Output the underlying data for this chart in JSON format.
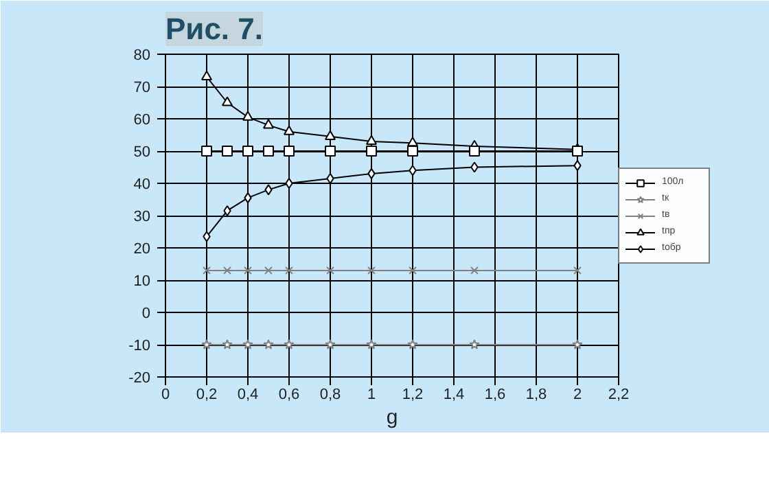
{
  "chart_data": {
    "type": "line",
    "title": "Рис. 7.",
    "xlabel": "g",
    "x": [
      0.2,
      0.3,
      0.4,
      0.5,
      0.6,
      0.8,
      1,
      1.2,
      1.5,
      2
    ],
    "series": [
      {
        "name": "100л",
        "color": "#000000",
        "marker": "square",
        "values": [
          50,
          50,
          50,
          50,
          50,
          50,
          50,
          50,
          50,
          50
        ]
      },
      {
        "name": "tк",
        "color": "#808080",
        "marker": "star",
        "values": [
          -10,
          -10,
          -10,
          -10,
          -10,
          -10,
          -10,
          -10,
          -10,
          -10
        ]
      },
      {
        "name": "tв",
        "color": "#808080",
        "marker": "cross",
        "values": [
          13,
          13,
          13,
          13,
          13,
          13,
          13,
          13,
          13,
          13
        ]
      },
      {
        "name": "tпр",
        "color": "#000000",
        "marker": "triangle",
        "values": [
          73,
          65,
          60.5,
          58,
          56,
          54.5,
          53,
          52.5,
          51.5,
          50.5
        ]
      },
      {
        "name": "tобр",
        "color": "#000000",
        "marker": "diamond",
        "values": [
          23.5,
          31.5,
          35.5,
          38,
          40,
          41.5,
          43,
          44,
          45,
          45.5
        ]
      }
    ],
    "xlim": [
      0,
      2.2
    ],
    "ylim": [
      -20,
      80
    ],
    "xticks": [
      0,
      {
        "value": 0.2,
        "label": "0,2"
      },
      {
        "value": 0.4,
        "label": "0,4"
      },
      {
        "value": 0.6,
        "label": "0,6"
      },
      {
        "value": 0.8,
        "label": "0,8"
      },
      1,
      {
        "value": 1.2,
        "label": "1,2"
      },
      {
        "value": 1.4,
        "label": "1,4"
      },
      {
        "value": 1.6,
        "label": "1,6"
      },
      {
        "value": 1.8,
        "label": "1,8"
      },
      2,
      {
        "value": 2.2,
        "label": "2,2"
      }
    ],
    "yticks": [
      -20,
      -10,
      0,
      10,
      20,
      30,
      40,
      50,
      60,
      70,
      80
    ],
    "grid": true,
    "legend": "right",
    "line_style": "solid"
  }
}
